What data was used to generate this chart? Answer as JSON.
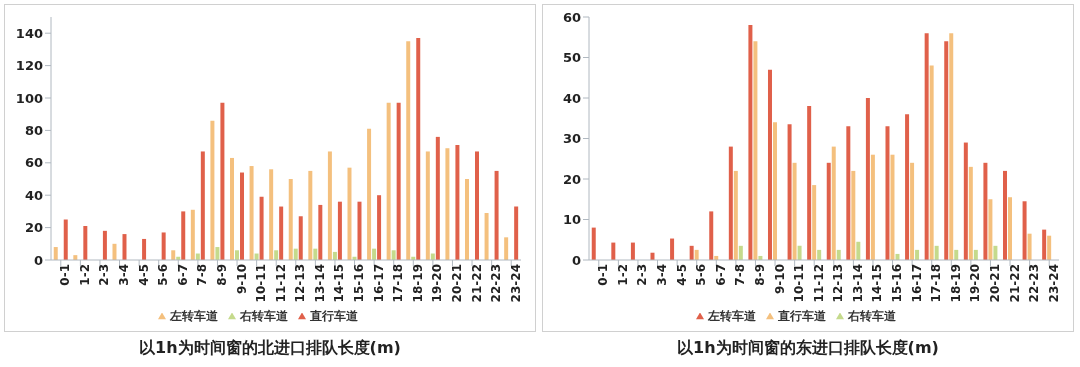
{
  "chart_data": [
    {
      "type": "bar",
      "title": "以1h为时间窗的北进口排队长度(m)",
      "categories": [
        "0-1",
        "1-2",
        "2-3",
        "3-4",
        "4-5",
        "5-6",
        "6-7",
        "7-8",
        "8-9",
        "9-10",
        "10-11",
        "11-12",
        "12-13",
        "13-14",
        "14-15",
        "15-16",
        "16-17",
        "17-18",
        "18-19",
        "19-20",
        "20-21",
        "21-22",
        "22-23",
        "23-24"
      ],
      "series": [
        {
          "name": "左转车道",
          "color": "#f4c07e",
          "values": [
            8,
            3,
            0,
            10,
            0,
            0,
            6,
            31,
            86,
            63,
            58,
            56,
            50,
            55,
            67,
            57,
            81,
            97,
            135,
            67,
            69,
            50,
            29,
            14
          ]
        },
        {
          "name": "右转车道",
          "color": "#c5da8c",
          "values": [
            0,
            0,
            0,
            0,
            0,
            0,
            2,
            4,
            8,
            6,
            4,
            6,
            7,
            7,
            5,
            2,
            7,
            6,
            2,
            4,
            0,
            0,
            0,
            0
          ]
        },
        {
          "name": "直行车道",
          "color": "#e0604a",
          "values": [
            25,
            21,
            18,
            16,
            13,
            17,
            30,
            67,
            97,
            54,
            39,
            33,
            27,
            34,
            36,
            36,
            40,
            97,
            137,
            76,
            71,
            67,
            55,
            33
          ]
        }
      ],
      "ylim": [
        0,
        150
      ],
      "yticks": [
        0,
        20,
        40,
        60,
        80,
        100,
        120,
        140
      ],
      "legend": "bottom"
    },
    {
      "type": "bar",
      "title": "以1h为时间窗的东进口排队长度(m)",
      "categories": [
        "0-1",
        "1-2",
        "2-3",
        "3-4",
        "4-5",
        "5-6",
        "6-7",
        "7-8",
        "8-9",
        "9-10",
        "10-11",
        "11-12",
        "12-13",
        "13-14",
        "14-15",
        "15-16",
        "16-17",
        "17-18",
        "18-19",
        "19-20",
        "20-21",
        "21-22",
        "22-23",
        "23-24"
      ],
      "series": [
        {
          "name": "左转车道",
          "color": "#e0604a",
          "values": [
            8,
            4.3,
            4.3,
            1.8,
            5.3,
            3.5,
            12,
            28,
            58,
            47,
            33.5,
            38,
            24,
            33,
            40,
            33,
            36,
            56,
            54,
            29,
            24,
            22,
            14.5,
            7.5
          ]
        },
        {
          "name": "直行车道",
          "color": "#f4c07e",
          "values": [
            0,
            null,
            0,
            0,
            0,
            2.5,
            1,
            22,
            54,
            34,
            24,
            18.5,
            28,
            22,
            26,
            26,
            24,
            48,
            56,
            23,
            15,
            15.5,
            6.5,
            6
          ]
        },
        {
          "name": "右转车道",
          "color": "#c5da8c",
          "values": [
            0,
            0,
            0,
            0,
            0,
            0,
            0,
            3.5,
            1,
            null,
            3.5,
            2.5,
            2.5,
            4.5,
            null,
            1.5,
            2.5,
            3.5,
            2.5,
            2.5,
            3.5,
            null,
            0,
            0
          ]
        }
      ],
      "ylim": [
        0,
        60
      ],
      "yticks": [
        0,
        10,
        20,
        30,
        40,
        50,
        60
      ],
      "legend": "bottom"
    }
  ]
}
